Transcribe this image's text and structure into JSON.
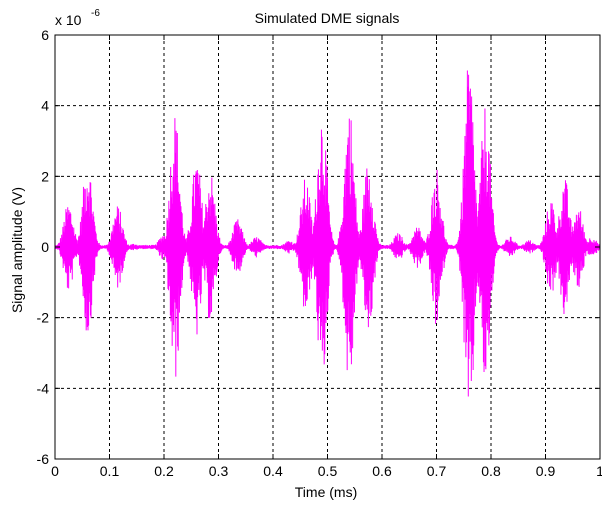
{
  "chart_data": {
    "type": "line",
    "title": "Simulated DME signals",
    "xlabel": "Time (ms)",
    "ylabel": "Signal amplitude (V)",
    "y_scale_base": "x 10",
    "y_scale_exponent": "-6",
    "xlim": [
      0,
      1
    ],
    "ylim": [
      -6,
      6
    ],
    "x_ticks": [
      "0",
      "0.1",
      "0.2",
      "0.3",
      "0.4",
      "0.5",
      "0.6",
      "0.7",
      "0.8",
      "0.9",
      "1"
    ],
    "y_ticks": [
      "-6",
      "-4",
      "-2",
      "0",
      "2",
      "4",
      "6"
    ],
    "grid": true,
    "grid_style": "dashed",
    "series": [
      {
        "color": "#ff00ff",
        "pulse_bursts": [
          {
            "center_ms": 0.025,
            "peak": 1.3
          },
          {
            "center_ms": 0.06,
            "peak": 2.6
          },
          {
            "center_ms": 0.115,
            "peak": 1.2
          },
          {
            "center_ms": 0.145,
            "peak": 0.1
          },
          {
            "center_ms": 0.2,
            "peak": 0.4
          },
          {
            "center_ms": 0.22,
            "peak": 3.9
          },
          {
            "center_ms": 0.26,
            "peak": 2.6
          },
          {
            "center_ms": 0.285,
            "peak": 2.2
          },
          {
            "center_ms": 0.335,
            "peak": 0.8
          },
          {
            "center_ms": 0.37,
            "peak": 0.3
          },
          {
            "center_ms": 0.43,
            "peak": 0.2
          },
          {
            "center_ms": 0.46,
            "peak": 2.0
          },
          {
            "center_ms": 0.49,
            "peak": 4.0
          },
          {
            "center_ms": 0.54,
            "peak": 4.1
          },
          {
            "center_ms": 0.575,
            "peak": 2.5
          },
          {
            "center_ms": 0.63,
            "peak": 0.4
          },
          {
            "center_ms": 0.665,
            "peak": 0.6
          },
          {
            "center_ms": 0.7,
            "peak": 2.3
          },
          {
            "center_ms": 0.76,
            "peak": 5.4
          },
          {
            "center_ms": 0.79,
            "peak": 4.1
          },
          {
            "center_ms": 0.835,
            "peak": 0.3
          },
          {
            "center_ms": 0.87,
            "peak": 0.2
          },
          {
            "center_ms": 0.91,
            "peak": 1.4
          },
          {
            "center_ms": 0.935,
            "peak": 2.0
          },
          {
            "center_ms": 0.96,
            "peak": 1.2
          },
          {
            "center_ms": 0.985,
            "peak": 0.3
          }
        ]
      }
    ]
  }
}
